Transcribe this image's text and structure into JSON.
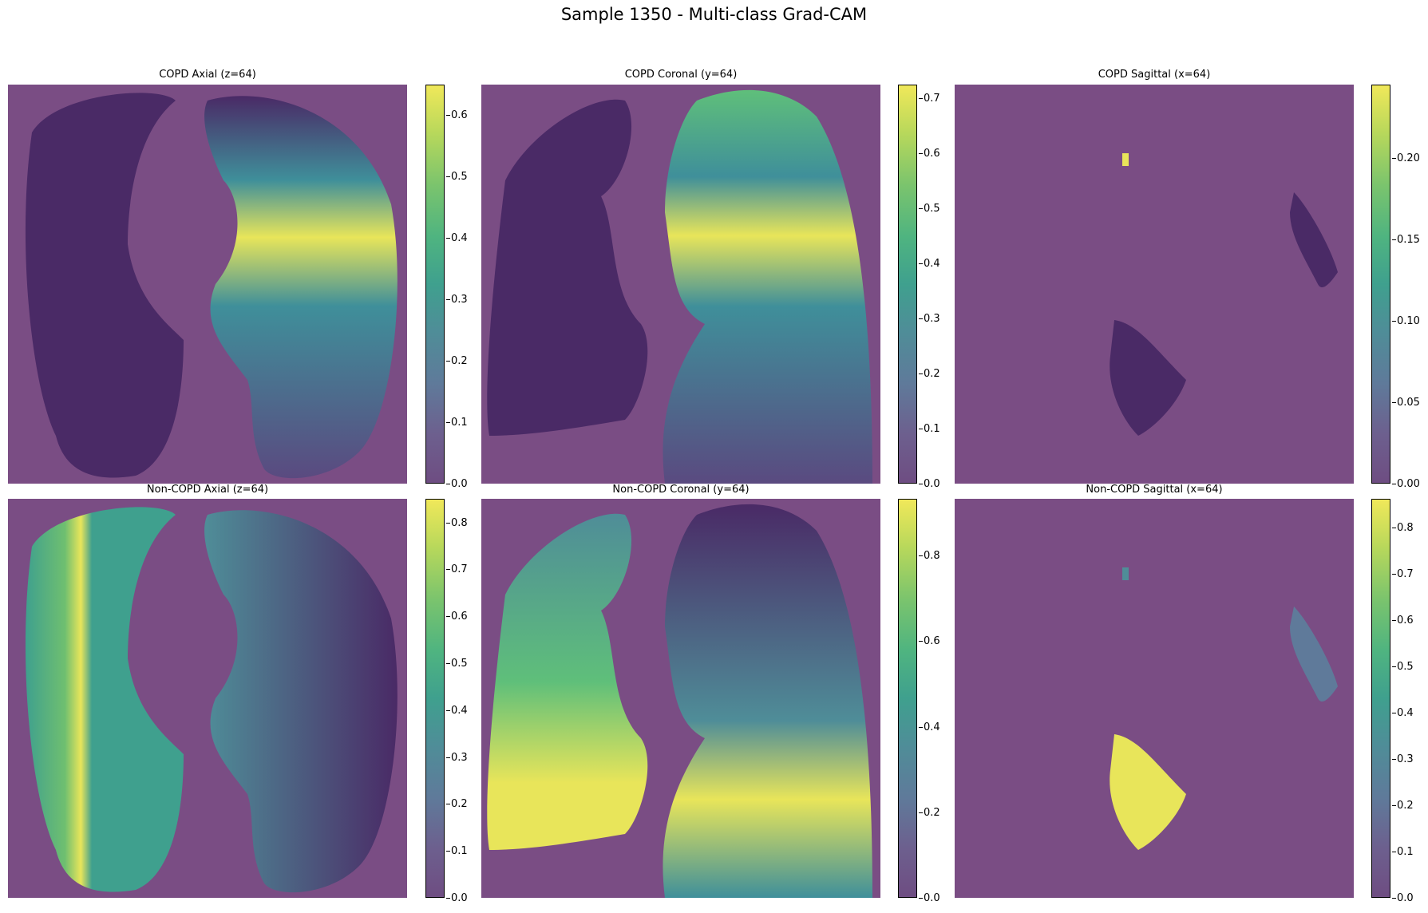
{
  "figure": {
    "title": "Sample 1350 - Multi-class Grad-CAM"
  },
  "panels": [
    {
      "title": "COPD Axial (z=64)",
      "ticks": [
        "0.0",
        "0.1",
        "0.2",
        "0.3",
        "0.4",
        "0.5",
        "0.6"
      ],
      "vmax": 0.65
    },
    {
      "title": "COPD Coronal (y=64)",
      "ticks": [
        "0.0",
        "0.1",
        "0.2",
        "0.3",
        "0.4",
        "0.5",
        "0.6",
        "0.7"
      ],
      "vmax": 0.72
    },
    {
      "title": "COPD Sagittal (x=64)",
      "ticks": [
        "0.00",
        "0.05",
        "0.10",
        "0.15",
        "0.20"
      ],
      "vmax": 0.245
    },
    {
      "title": "Non-COPD Axial (z=64)",
      "ticks": [
        "0.0",
        "0.1",
        "0.2",
        "0.3",
        "0.4",
        "0.5",
        "0.6",
        "0.7",
        "0.8"
      ],
      "vmax": 0.85
    },
    {
      "title": "Non-COPD Coronal (y=64)",
      "ticks": [
        "0.0",
        "0.2",
        "0.4",
        "0.6",
        "0.8"
      ],
      "vmax": 0.93
    },
    {
      "title": "Non-COPD Sagittal (x=64)",
      "ticks": [
        "0.0",
        "0.1",
        "0.2",
        "0.3",
        "0.4",
        "0.5",
        "0.6",
        "0.7",
        "0.8"
      ],
      "vmax": 0.86
    }
  ],
  "colors": {
    "background": "#7a4d84",
    "lung_dark": "#4a2a66",
    "heat_yellow": "#e8e55a",
    "heat_green": "#5fbf7a",
    "heat_teal": "#3f8f9a"
  }
}
